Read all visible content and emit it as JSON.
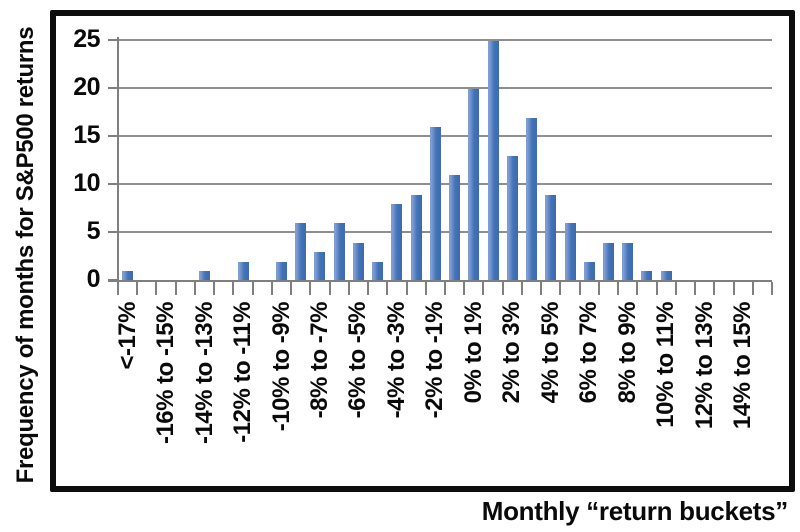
{
  "chart_data": {
    "type": "bar",
    "title": "",
    "xlabel": "Monthly “return buckets”",
    "ylabel": "Frequency of months for S&P500 returns",
    "ylim": [
      0,
      25
    ],
    "y_ticks": [
      0,
      5,
      10,
      15,
      20,
      25
    ],
    "grid": true,
    "legend": false,
    "categories": [
      "<-17%",
      "",
      "-16% to -15%",
      "",
      "-14% to -13%",
      "",
      "-12% to -11%",
      "",
      "-10% to -9%",
      "",
      "-8% to -7%",
      "",
      "-6% to -5%",
      "",
      "-4% to -3%",
      "",
      "-2% to -1%",
      "",
      "0% to 1%",
      "",
      "2% to 3%",
      "",
      "4% to 5%",
      "",
      "6% to 7%",
      "",
      "8% to 9%",
      "",
      "10% to 11%",
      "",
      "12% to 13%",
      "",
      "14% to 15%",
      ""
    ],
    "values": [
      1,
      0,
      0,
      0,
      1,
      0,
      2,
      0,
      2,
      6,
      3,
      6,
      4,
      2,
      8,
      9,
      16,
      11,
      20,
      25,
      13,
      17,
      9,
      6,
      2,
      4,
      4,
      1,
      1,
      0,
      0,
      0,
      0,
      0
    ],
    "colors": {
      "bar": "#4273B8",
      "bar_edge_highlight": "#7F9DD2",
      "gridline": "#8E8E8E",
      "axis": "#7F7F7F",
      "frame": "#0D0D0D",
      "text": "#0A0A0A",
      "background": "#FFFFFF"
    }
  }
}
